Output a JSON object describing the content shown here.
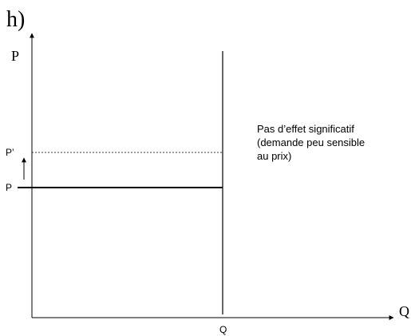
{
  "diagram": {
    "panel_label": "h)",
    "axes": {
      "y_title": "P",
      "x_title": "Q"
    },
    "labels": {
      "p_prime": "P’",
      "p": "P",
      "q": "Q"
    },
    "annotation": {
      "lines": [
        "Pas d’effet significatif",
        "(demande peu sensible",
        "au prix)"
      ]
    },
    "colors": {
      "ink": "#000000",
      "background": "#ffffff"
    }
  }
}
